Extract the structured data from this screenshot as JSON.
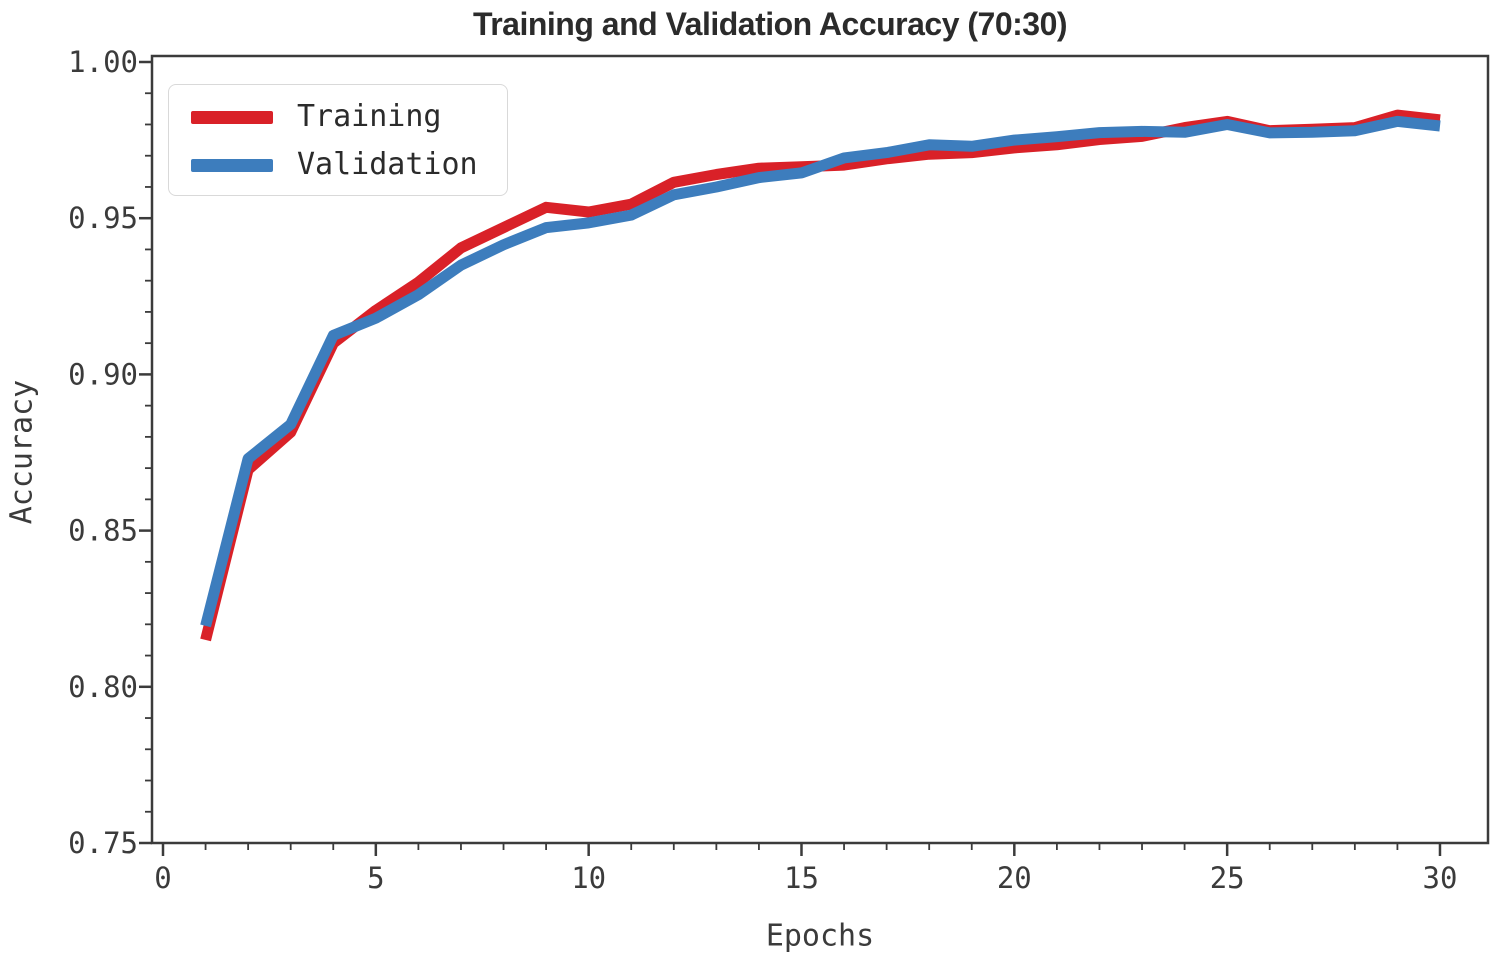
{
  "figure": {
    "title": "Training and Validation Accuracy (70:30)",
    "x_axis_label": "Epochs",
    "y_axis_label": "Accuracy",
    "legend": {
      "entries": [
        {
          "label": "Training",
          "color": "#d92128"
        },
        {
          "label": "Validation",
          "color": "#3d7dbd"
        }
      ]
    }
  },
  "chart_data": {
    "type": "line",
    "title": "Training and Validation Accuracy (70:30)",
    "xlabel": "Epochs",
    "ylabel": "Accuracy",
    "xlim": [
      0,
      31
    ],
    "ylim": [
      0.75,
      1.0
    ],
    "x_ticks": [
      0,
      5,
      10,
      15,
      20,
      25,
      30
    ],
    "x_tick_labels": [
      "0",
      "5",
      "10",
      "15",
      "20",
      "25",
      "30"
    ],
    "y_ticks": [
      0.75,
      0.8,
      0.85,
      0.9,
      0.95,
      1.0
    ],
    "y_tick_labels": [
      "0.75",
      "0.80",
      "0.85",
      "0.90",
      "0.95",
      "1.00"
    ],
    "minor_ticks": true,
    "grid": false,
    "legend_position": "upper left",
    "x": [
      1,
      2,
      3,
      4,
      5,
      6,
      7,
      8,
      9,
      10,
      11,
      12,
      13,
      14,
      15,
      16,
      17,
      18,
      19,
      20,
      21,
      22,
      23,
      24,
      25,
      26,
      27,
      28,
      29,
      30
    ],
    "series": [
      {
        "name": "Training",
        "color": "#d92128",
        "values": [
          0.815,
          0.8695,
          0.8815,
          0.91,
          0.9205,
          0.9295,
          0.9405,
          0.947,
          0.9535,
          0.952,
          0.9545,
          0.9615,
          0.964,
          0.966,
          0.9665,
          0.967,
          0.969,
          0.9705,
          0.971,
          0.9725,
          0.9735,
          0.9752,
          0.9762,
          0.979,
          0.981,
          0.978,
          0.9785,
          0.979,
          0.983,
          0.9815
        ]
      },
      {
        "name": "Validation",
        "color": "#3d7dbd",
        "values": [
          0.8195,
          0.873,
          0.884,
          0.9125,
          0.918,
          0.9255,
          0.935,
          0.9415,
          0.947,
          0.9485,
          0.951,
          0.9575,
          0.96,
          0.963,
          0.9645,
          0.9693,
          0.971,
          0.9735,
          0.973,
          0.975,
          0.9761,
          0.9774,
          0.9778,
          0.9775,
          0.98,
          0.9773,
          0.9775,
          0.978,
          0.981,
          0.9795
        ]
      }
    ]
  }
}
